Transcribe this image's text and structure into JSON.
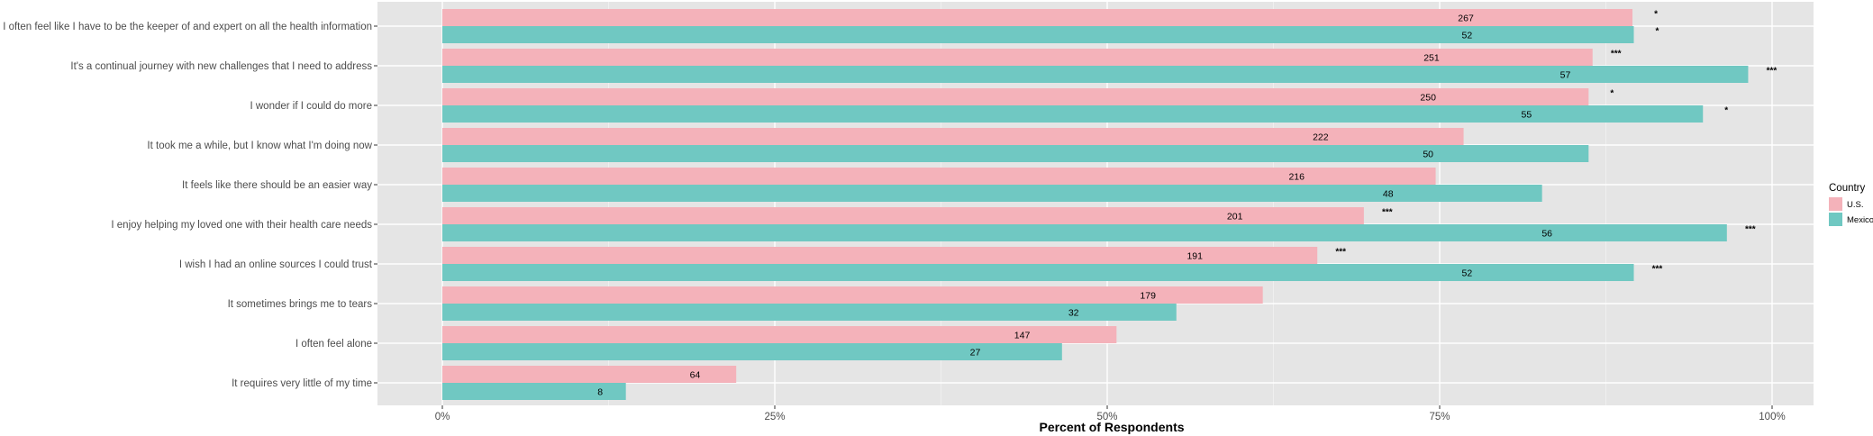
{
  "chart_data": {
    "type": "bar",
    "orientation": "horizontal",
    "xlabel": "Percent of Respondents",
    "xlim": [
      0,
      1.03
    ],
    "xticks": [
      0,
      0.25,
      0.5,
      0.75,
      1.0
    ],
    "xtick_labels": [
      "0%",
      "25%",
      "50%",
      "75%",
      "100%"
    ],
    "grid": true,
    "legend": {
      "title": "Country",
      "placement": "right"
    },
    "categories": [
      "I often feel like I have to be the keeper of and expert on all the health information",
      "It's a continual journey with new challenges that I need to address",
      "I wonder if I could do more",
      "It took me a while, but I know what I'm doing now",
      "It feels like there should be an easier way",
      "I enjoy helping my loved one with their health care needs",
      "I wish I had an online sources I could trust",
      "It sometimes brings me to tears",
      "I often feel alone",
      "It requires very little of my time"
    ],
    "series": [
      {
        "name": "U.S.",
        "color": "#F4B2BA",
        "values": [
          0.895,
          0.865,
          0.862,
          0.768,
          0.747,
          0.693,
          0.658,
          0.617,
          0.507,
          0.221
        ],
        "labels": [
          "267",
          "251",
          "250",
          "222",
          "216",
          "201",
          "191",
          "179",
          "147",
          "64"
        ],
        "significance": [
          "*",
          "***",
          "*",
          "",
          "",
          "***",
          "***",
          "",
          "",
          ""
        ]
      },
      {
        "name": "Mexico",
        "color": "#70C8C2",
        "values": [
          0.896,
          0.982,
          0.948,
          0.862,
          0.827,
          0.966,
          0.896,
          0.552,
          0.466,
          0.138
        ],
        "labels": [
          "52",
          "57",
          "55",
          "50",
          "48",
          "56",
          "52",
          "32",
          "27",
          "8"
        ],
        "significance": [
          "*",
          "***",
          "*",
          "",
          "",
          "***",
          "***",
          "",
          "",
          ""
        ]
      }
    ]
  }
}
